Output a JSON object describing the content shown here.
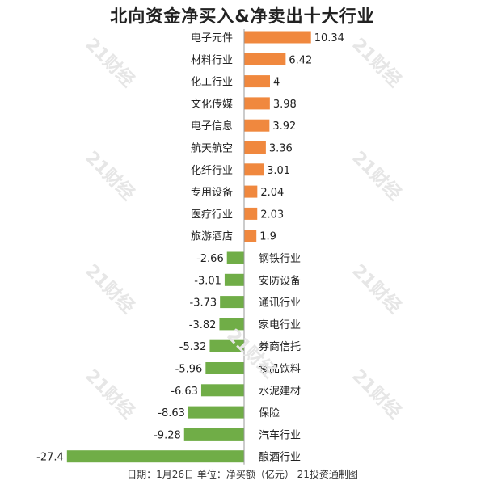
{
  "colors": {
    "positive": "#f0883e",
    "negative": "#70ad47",
    "axis": "#999999",
    "text": "#222222"
  },
  "watermark": "21财经",
  "chart_data": {
    "type": "bar",
    "orientation": "horizontal",
    "title": "北向资金净买入&净卖出十大行业",
    "source": "日期：1月26日 单位：净买额（亿元） 21投资通制图",
    "categories": [
      "电子元件",
      "材料行业",
      "化工行业",
      "文化传媒",
      "电子信息",
      "航天航空",
      "化纤行业",
      "专用设备",
      "医疗行业",
      "旅游酒店",
      "钢铁行业",
      "安防设备",
      "通讯行业",
      "家电行业",
      "券商信托",
      "食品饮料",
      "水泥建材",
      "保险",
      "汽车行业",
      "酿酒行业"
    ],
    "values": [
      10.34,
      6.42,
      4,
      3.98,
      3.92,
      3.36,
      3.01,
      2.04,
      2.03,
      1.9,
      -2.66,
      -3.01,
      -3.73,
      -3.82,
      -5.32,
      -5.96,
      -6.63,
      -8.63,
      -9.28,
      -27.4
    ],
    "value_labels": [
      "10.34",
      "6.42",
      "4",
      "3.98",
      "3.92",
      "3.36",
      "3.01",
      "2.04",
      "2.03",
      "1.9",
      "-2.66",
      "-3.01",
      "-3.73",
      "-3.82",
      "-5.32",
      "-5.96",
      "-6.63",
      "-8.63",
      "-9.28",
      "-27.4"
    ],
    "grid": false,
    "legend": "none"
  }
}
